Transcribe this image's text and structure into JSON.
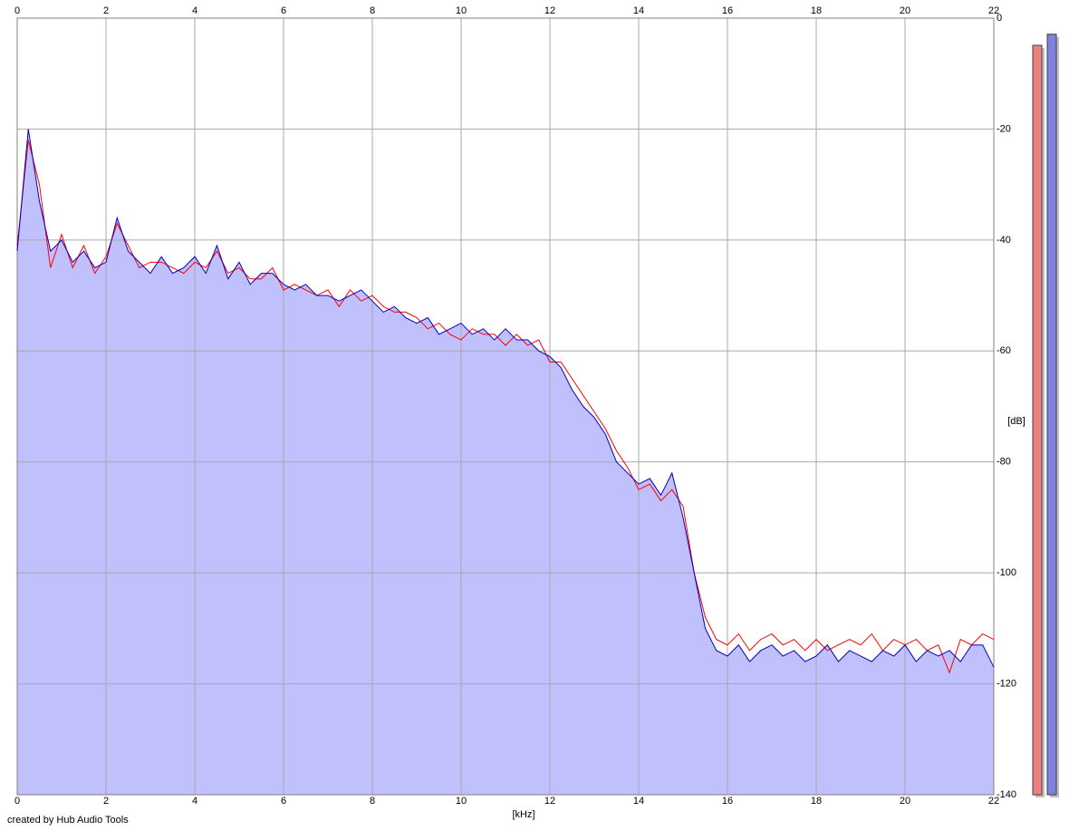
{
  "chart_data": {
    "type": "line",
    "x_label": "[kHz]",
    "y_label": "[dB]",
    "credit": "created by Hub Audio Tools",
    "x": [
      0,
      0.25,
      0.5,
      0.75,
      1,
      1.25,
      1.5,
      1.75,
      2,
      2.25,
      2.5,
      2.75,
      3,
      3.25,
      3.5,
      3.75,
      4,
      4.25,
      4.5,
      4.75,
      5,
      5.25,
      5.5,
      5.75,
      6,
      6.25,
      6.5,
      6.75,
      7,
      7.25,
      7.5,
      7.75,
      8,
      8.25,
      8.5,
      8.75,
      9,
      9.25,
      9.5,
      9.75,
      10,
      10.25,
      10.5,
      10.75,
      11,
      11.25,
      11.5,
      11.75,
      12,
      12.25,
      12.5,
      12.75,
      13,
      13.25,
      13.5,
      13.75,
      14,
      14.25,
      14.5,
      14.75,
      15,
      15.25,
      15.5,
      15.75,
      16,
      16.25,
      16.5,
      16.75,
      17,
      17.25,
      17.5,
      17.75,
      18,
      18.25,
      18.5,
      18.75,
      19,
      19.25,
      19.5,
      19.75,
      20,
      20.25,
      20.5,
      20.75,
      21,
      21.25,
      21.5,
      21.75,
      22
    ],
    "series": [
      {
        "color": "#ff0000",
        "values": [
          -41,
          -22,
          -30,
          -45,
          -39,
          -45,
          -41,
          -46,
          -43,
          -37,
          -41,
          -45,
          -44,
          -44,
          -45,
          -46,
          -44,
          -45,
          -42,
          -46,
          -45,
          -47,
          -47,
          -45,
          -49,
          -48,
          -49,
          -50,
          -49,
          -52,
          -49,
          -51,
          -50,
          -52,
          -53,
          -53,
          -54,
          -56,
          -55,
          -57,
          -58,
          -56,
          -57,
          -57,
          -59,
          -57,
          -59,
          -58,
          -62,
          -62,
          -65,
          -68,
          -71,
          -74,
          -78,
          -81,
          -85,
          -84,
          -87,
          -85,
          -88,
          -100,
          -108,
          -112,
          -113,
          -111,
          -114,
          -112,
          -111,
          -113,
          -112,
          -114,
          -112,
          -114,
          -113,
          -112,
          -113,
          -111,
          -114,
          -112,
          -113,
          -112,
          -114,
          -113,
          -118,
          -112,
          -113,
          -111,
          -112
        ]
      },
      {
        "color": "#0000c0",
        "fill_color": "#c0c0fc",
        "values": [
          -42,
          -20,
          -33,
          -42,
          -40,
          -44,
          -42,
          -45,
          -44,
          -36,
          -42,
          -44,
          -46,
          -43,
          -46,
          -45,
          -43,
          -46,
          -41,
          -47,
          -44,
          -48,
          -46,
          -46,
          -48,
          -49,
          -48,
          -50,
          -50,
          -51,
          -50,
          -49,
          -51,
          -53,
          -52,
          -54,
          -55,
          -54,
          -57,
          -56,
          -55,
          -57,
          -56,
          -58,
          -56,
          -58,
          -58,
          -60,
          -61,
          -63,
          -67,
          -70,
          -72,
          -75,
          -80,
          -82,
          -84,
          -83,
          -86,
          -82,
          -90,
          -100,
          -110,
          -114,
          -115,
          -113,
          -116,
          -114,
          -113,
          -115,
          -114,
          -116,
          -115,
          -113,
          -116,
          -114,
          -115,
          -116,
          -114,
          -115,
          -113,
          -116,
          -114,
          -115,
          -114,
          -116,
          -113,
          -113,
          -117
        ]
      }
    ],
    "meters": [
      {
        "color": "#f08080",
        "value": -4.9
      },
      {
        "color": "#8080e0",
        "value": -2.9
      }
    ],
    "xlim": [
      0,
      22
    ],
    "xticks": [
      0,
      2,
      4,
      6,
      8,
      10,
      12,
      14,
      16,
      18,
      20,
      22
    ],
    "ylim": [
      -140,
      0
    ],
    "yticks": [
      0,
      -20,
      -40,
      -60,
      -80,
      -100,
      -120,
      -140
    ],
    "grid": true
  }
}
